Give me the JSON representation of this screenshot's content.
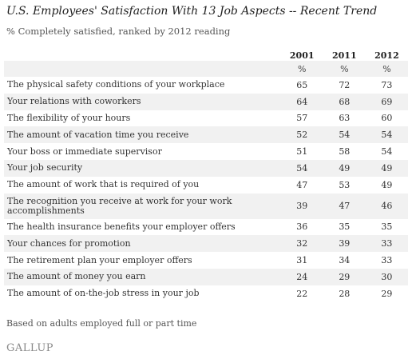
{
  "chart_data": {
    "type": "table",
    "title": "U.S. Employees' Satisfaction With 13 Job Aspects -- Recent Trend",
    "subtitle": "% Completely satisfied, ranked by 2012 reading",
    "columns": [
      "2001",
      "2011",
      "2012"
    ],
    "unit_row": [
      "%",
      "%",
      "%"
    ],
    "rows": [
      {
        "label": "The physical safety conditions of your workplace",
        "values": [
          65,
          72,
          73
        ]
      },
      {
        "label": "Your relations with coworkers",
        "values": [
          64,
          68,
          69
        ]
      },
      {
        "label": "The flexibility of your hours",
        "values": [
          57,
          63,
          60
        ]
      },
      {
        "label": "The amount of vacation time you receive",
        "values": [
          52,
          54,
          54
        ]
      },
      {
        "label": "Your boss or immediate supervisor",
        "values": [
          51,
          58,
          54
        ]
      },
      {
        "label": "Your job security",
        "values": [
          54,
          49,
          49
        ]
      },
      {
        "label": "The amount of work that is required of you",
        "values": [
          47,
          53,
          49
        ]
      },
      {
        "label": "The recognition you receive at work for your work accomplishments",
        "values": [
          39,
          47,
          46
        ]
      },
      {
        "label": "The health insurance benefits your employer offers",
        "values": [
          36,
          35,
          35
        ]
      },
      {
        "label": "Your chances for promotion",
        "values": [
          32,
          39,
          33
        ]
      },
      {
        "label": "The retirement plan your employer offers",
        "values": [
          31,
          34,
          33
        ]
      },
      {
        "label": "The amount of money you earn",
        "values": [
          24,
          29,
          30
        ]
      },
      {
        "label": "The amount of on-the-job stress in your job",
        "values": [
          22,
          28,
          29
        ]
      }
    ],
    "note": "Based on adults employed full or part time"
  },
  "brand": "GALLUP"
}
